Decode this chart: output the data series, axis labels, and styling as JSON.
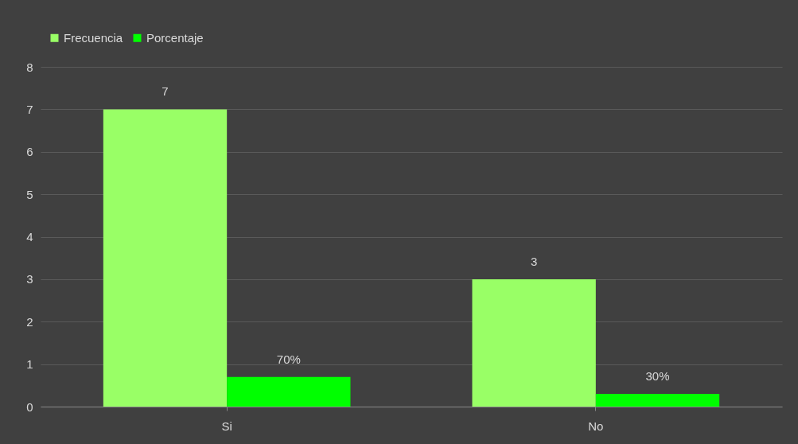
{
  "chart_data": {
    "type": "bar",
    "categories": [
      "Si",
      "No"
    ],
    "series": [
      {
        "name": "Frecuencia",
        "color": "#99ff66",
        "values": [
          7,
          3
        ],
        "value_labels": [
          "7",
          "3"
        ]
      },
      {
        "name": "Porcentaje",
        "color": "#00ff00",
        "values": [
          0.7,
          0.3
        ],
        "value_labels": [
          "70%",
          "30%"
        ]
      }
    ],
    "ylim": [
      0,
      8
    ],
    "yticks": [
      0,
      1,
      2,
      3,
      4,
      5,
      6,
      7,
      8
    ],
    "grid": "y",
    "legend": "top"
  }
}
